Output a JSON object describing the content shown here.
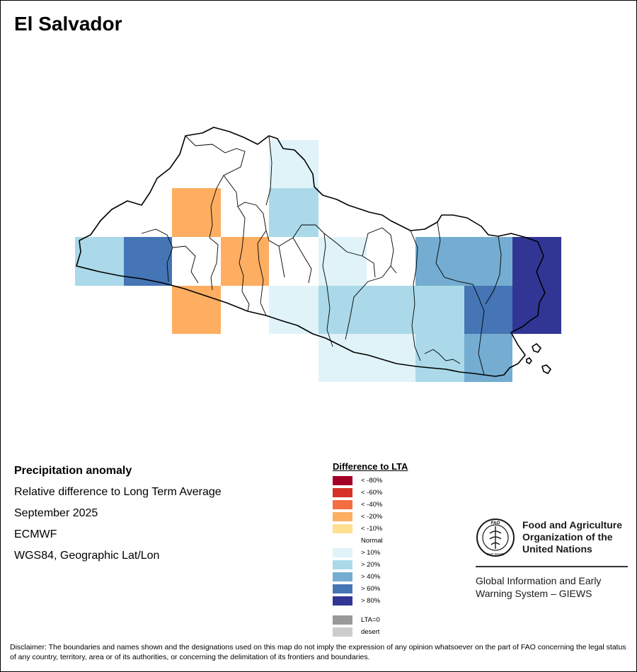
{
  "map": {
    "title": "El Salvador",
    "info_lines": [
      "Precipitation anomaly",
      "Relative difference to Long Term Average",
      "September 2025",
      "ECMWF",
      "WGS84, Geographic Lat/Lon"
    ]
  },
  "legend": {
    "title": "Difference to LTA",
    "items": [
      {
        "label": "< -80%",
        "color": "#a50026"
      },
      {
        "label": "< -60%",
        "color": "#d73027"
      },
      {
        "label": "< -40%",
        "color": "#f46d43"
      },
      {
        "label": "< -20%",
        "color": "#fdae61"
      },
      {
        "label": "< -10%",
        "color": "#fee090"
      },
      {
        "label": "Normal",
        "color": "#ffffff"
      },
      {
        "label": "> 10%",
        "color": "#e0f3f8"
      },
      {
        "label": "> 20%",
        "color": "#abd9e9"
      },
      {
        "label": "> 40%",
        "color": "#74add1"
      },
      {
        "label": "> 60%",
        "color": "#4575b4"
      },
      {
        "label": "> 80%",
        "color": "#313695"
      }
    ],
    "extra": [
      {
        "label": "LTA=0",
        "color": "#999999"
      },
      {
        "label": "desert",
        "color": "#cccccc"
      }
    ]
  },
  "fao": {
    "name_lines": [
      "Food and Agriculture",
      "Organization of the",
      "United Nations"
    ],
    "giews_lines": [
      "Global Information and Early",
      "Warning System – GIEWS"
    ],
    "logo_text": "FAO",
    "logo_ring_text": "FIAT PANIS"
  },
  "disclaimer": "Disclaimer: The boundaries and names shown and the designations used on this map do not imply the expression of any opinion whatsoever on the part of FAO concerning the legal status of any country, territory, area or of its authorities, or concerning the delimitation of its frontiers and boundaries."
}
